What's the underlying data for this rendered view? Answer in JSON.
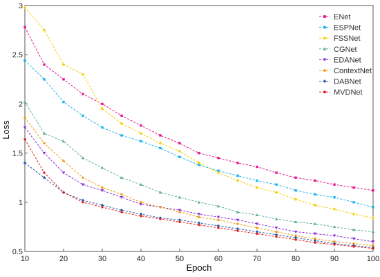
{
  "chart_data": {
    "type": "line",
    "title": "",
    "xlabel": "Epoch",
    "ylabel": "Loss",
    "xlim": [
      10,
      100
    ],
    "ylim": [
      0.5,
      3
    ],
    "xticks": [
      "10",
      "20",
      "30",
      "40",
      "50",
      "60",
      "70",
      "80",
      "90",
      "100"
    ],
    "yticks": [
      "0.5",
      "1",
      "1.5",
      "2",
      "2.5",
      "3"
    ],
    "grid": false,
    "legend_position": "top-right",
    "x": [
      10,
      15,
      20,
      25,
      30,
      35,
      40,
      45,
      50,
      55,
      60,
      65,
      70,
      75,
      80,
      85,
      90,
      95,
      100
    ],
    "series": [
      {
        "name": "ENet",
        "color": "#e8158e",
        "marker": "square",
        "values": [
          2.78,
          2.4,
          2.25,
          2.1,
          2.0,
          1.88,
          1.78,
          1.68,
          1.6,
          1.5,
          1.45,
          1.4,
          1.36,
          1.3,
          1.25,
          1.22,
          1.18,
          1.15,
          1.12
        ]
      },
      {
        "name": "ESPNet",
        "color": "#1ab4ea",
        "marker": "square",
        "values": [
          2.44,
          2.25,
          2.02,
          1.88,
          1.76,
          1.68,
          1.62,
          1.55,
          1.46,
          1.38,
          1.32,
          1.27,
          1.22,
          1.18,
          1.12,
          1.08,
          1.05,
          1.0,
          0.95
        ]
      },
      {
        "name": "FSSNet",
        "color": "#f4d000",
        "marker": "diamond",
        "values": [
          2.98,
          2.75,
          2.4,
          2.3,
          1.95,
          1.8,
          1.7,
          1.6,
          1.52,
          1.4,
          1.3,
          1.22,
          1.15,
          1.1,
          1.03,
          0.97,
          0.93,
          0.88,
          0.84
        ]
      },
      {
        "name": "CGNet",
        "color": "#5fae91",
        "marker": "triangle",
        "values": [
          2.02,
          1.7,
          1.62,
          1.45,
          1.35,
          1.25,
          1.18,
          1.1,
          1.05,
          1.0,
          0.96,
          0.9,
          0.87,
          0.83,
          0.8,
          0.78,
          0.75,
          0.72,
          0.7
        ]
      },
      {
        "name": "EDANet",
        "color": "#8a2fd6",
        "marker": "triangle-down",
        "values": [
          1.76,
          1.5,
          1.3,
          1.18,
          1.12,
          1.05,
          0.98,
          0.95,
          0.92,
          0.88,
          0.85,
          0.82,
          0.78,
          0.74,
          0.7,
          0.68,
          0.66,
          0.63,
          0.6
        ]
      },
      {
        "name": "ContextNet",
        "color": "#f39a12",
        "marker": "circle",
        "values": [
          1.86,
          1.6,
          1.42,
          1.25,
          1.15,
          1.08,
          1.0,
          0.95,
          0.9,
          0.85,
          0.82,
          0.78,
          0.74,
          0.7,
          0.66,
          0.63,
          0.6,
          0.58,
          0.56
        ]
      },
      {
        "name": "DABNet",
        "color": "#2b5fa8",
        "marker": "diamond",
        "values": [
          1.4,
          1.25,
          1.1,
          1.02,
          0.97,
          0.92,
          0.88,
          0.84,
          0.82,
          0.79,
          0.76,
          0.73,
          0.7,
          0.67,
          0.64,
          0.61,
          0.58,
          0.56,
          0.54
        ]
      },
      {
        "name": "MVDNet",
        "color": "#e51f1f",
        "marker": "circle",
        "values": [
          1.64,
          1.3,
          1.1,
          1.0,
          0.95,
          0.9,
          0.86,
          0.83,
          0.8,
          0.77,
          0.74,
          0.71,
          0.68,
          0.65,
          0.62,
          0.59,
          0.57,
          0.55,
          0.53
        ]
      }
    ]
  }
}
